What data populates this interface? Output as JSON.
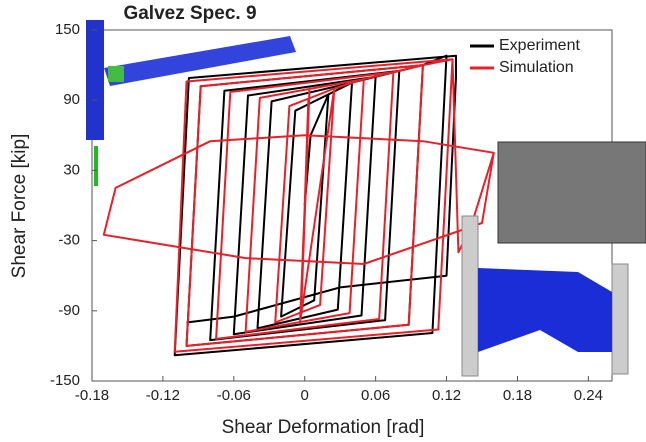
{
  "chart_data": {
    "type": "line",
    "title": "Galvez Spec. 9",
    "xlabel": "Shear Deformation [rad]",
    "ylabel": "Shear Force [kip]",
    "xlim": [
      -0.18,
      0.26
    ],
    "ylim": [
      -150,
      150
    ],
    "xticks": [
      -0.18,
      -0.12,
      -0.06,
      0,
      0.06,
      0.12,
      0.18,
      0.24
    ],
    "yticks": [
      -150,
      -90,
      -30,
      30,
      90,
      150
    ],
    "legend": "upper right",
    "series": [
      {
        "name": "Experiment",
        "color": "#000000",
        "x": [
          0,
          0.005,
          0.02,
          0.008,
          -0.02,
          -0.008,
          0.02,
          0.04,
          0.028,
          -0.04,
          -0.028,
          0.04,
          0.06,
          0.048,
          -0.06,
          -0.048,
          0.06,
          0.08,
          0.068,
          -0.08,
          -0.068,
          0.08,
          0.1,
          0.088,
          -0.1,
          -0.088,
          0.1,
          0.12,
          0.108,
          -0.11,
          -0.098,
          0.128,
          0.128,
          0.12,
          0.03,
          -0.06,
          -0.1
        ],
        "values": [
          0,
          60,
          95,
          -81,
          -95,
          81,
          95,
          105,
          -89,
          -105,
          89,
          105,
          110,
          -94,
          -110,
          94,
          110,
          115,
          -98,
          -115,
          98,
          115,
          120,
          -102,
          -120,
          102,
          120,
          128,
          -109,
          -128,
          109,
          128,
          110,
          -60,
          -70,
          -95,
          -100
        ]
      },
      {
        "name": "Simulation",
        "color": "#e8202a",
        "x": [
          0,
          0.003,
          -0.003,
          0.004,
          -0.004,
          0.025,
          0.013,
          -0.025,
          -0.013,
          0.025,
          0.05,
          0.038,
          -0.05,
          -0.038,
          0.05,
          0.075,
          0.063,
          -0.075,
          -0.063,
          0.075,
          0.1,
          0.088,
          -0.1,
          -0.088,
          0.1,
          0.125,
          0.113,
          -0.11,
          -0.1,
          0.125,
          0.13,
          0.14,
          0.16,
          0.1,
          0,
          -0.08,
          -0.16,
          -0.17,
          -0.14,
          -0.05,
          0.05,
          0.15,
          0.16
        ],
        "values": [
          0,
          90,
          -90,
          100,
          -100,
          100,
          -85,
          -100,
          85,
          100,
          108,
          -92,
          -108,
          92,
          108,
          114,
          -97,
          -114,
          97,
          114,
          120,
          -102,
          -120,
          102,
          120,
          125,
          -106,
          -125,
          106,
          125,
          -40,
          -20,
          45,
          55,
          60,
          55,
          15,
          -25,
          -30,
          -45,
          -50,
          -15,
          45
        ]
      }
    ]
  }
}
